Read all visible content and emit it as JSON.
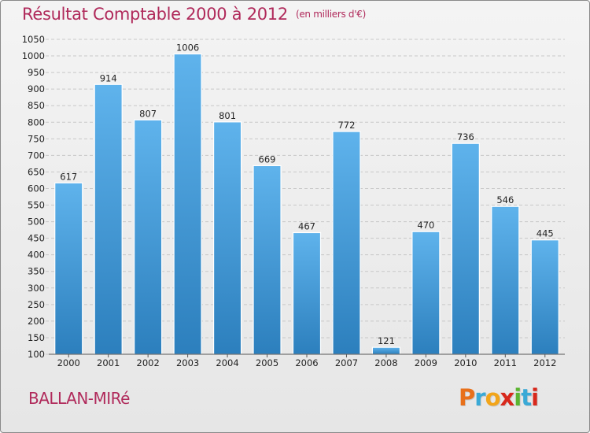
{
  "header": {
    "title": "Résultat Comptable 2000 à 2012",
    "unit": "(en milliers d'€)"
  },
  "footer": {
    "commune": "BALLAN-MIRé",
    "logo_letters": [
      "P",
      "r",
      "o",
      "x",
      "i",
      "t",
      "i"
    ],
    "logo_colors": [
      "#e8701a",
      "#3aa9d6",
      "#f2a51a",
      "#d8281c",
      "#5bb531",
      "#3aa9d6",
      "#d8281c"
    ]
  },
  "colors": {
    "bar_top": "#5fb3ec",
    "bar_bottom": "#2c7fbd",
    "grid": "#c8c8c8",
    "title": "#b02a5b"
  },
  "chart_data": {
    "type": "bar",
    "title": "Résultat Comptable 2000 à 2012",
    "subtitle": "(en milliers d'€)",
    "xlabel": "",
    "ylabel": "",
    "categories": [
      "2000",
      "2001",
      "2002",
      "2003",
      "2004",
      "2005",
      "2006",
      "2007",
      "2008",
      "2009",
      "2010",
      "2011",
      "2012"
    ],
    "values": [
      617,
      914,
      807,
      1006,
      801,
      669,
      467,
      772,
      121,
      470,
      736,
      546,
      445
    ],
    "ylim": [
      100,
      1050
    ],
    "yticks": [
      100,
      150,
      200,
      250,
      300,
      350,
      400,
      450,
      500,
      550,
      600,
      650,
      700,
      750,
      800,
      850,
      900,
      950,
      1000,
      1050
    ],
    "grid": true
  }
}
